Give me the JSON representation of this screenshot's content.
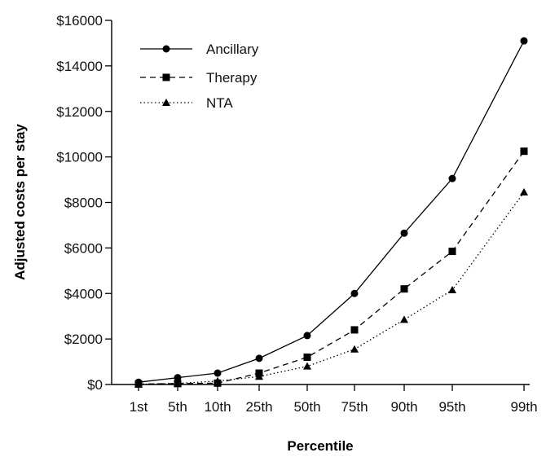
{
  "chart_data": {
    "type": "line",
    "title": "",
    "xlabel": "Percentile",
    "ylabel": "Adjusted costs per stay",
    "categories": [
      "1st",
      "5th",
      "10th",
      "25th",
      "50th",
      "75th",
      "90th",
      "95th",
      "99th"
    ],
    "ylim": [
      0,
      16000
    ],
    "yticks": [
      0,
      2000,
      4000,
      6000,
      8000,
      10000,
      12000,
      14000,
      16000
    ],
    "ytick_labels": [
      "$0",
      "$2000",
      "$4000",
      "$6000",
      "$8000",
      "$10000",
      "$12000",
      "$14000",
      "$16000"
    ],
    "grid": false,
    "legend_position": "top-left",
    "series": [
      {
        "name": "Ancillary",
        "line_style": "solid",
        "marker": "circle",
        "color": "#000000",
        "values": [
          100,
          300,
          500,
          1150,
          2150,
          4000,
          6650,
          9050,
          15100
        ]
      },
      {
        "name": "Therapy",
        "line_style": "dashed",
        "marker": "square",
        "color": "#000000",
        "values": [
          20,
          40,
          60,
          500,
          1200,
          2400,
          4200,
          5850,
          10250
        ]
      },
      {
        "name": "NTA",
        "line_style": "dotted",
        "marker": "triangle",
        "color": "#000000",
        "values": [
          10,
          50,
          150,
          350,
          800,
          1550,
          2850,
          4150,
          8450
        ]
      }
    ]
  }
}
